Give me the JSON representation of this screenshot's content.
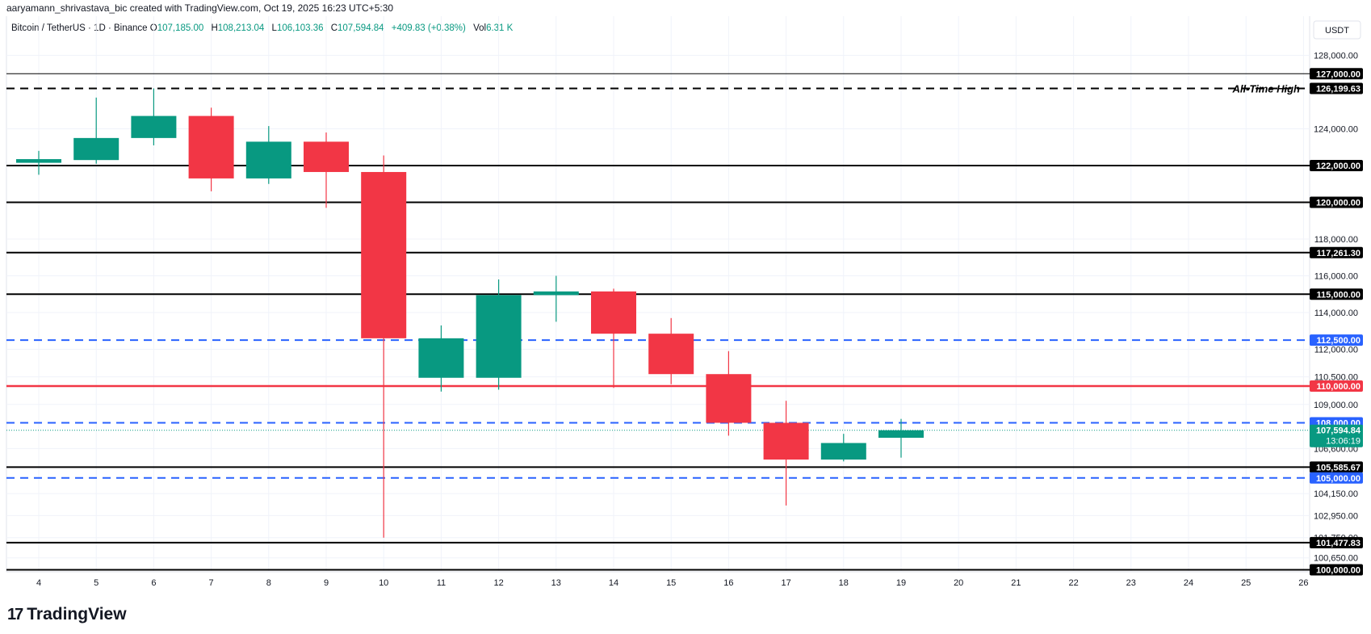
{
  "attribution": "aaryamann_shrivastava_bic created with TradingView.com, Oct 19, 2025 16:23 UTC+5:30",
  "legend": {
    "symbol": "Bitcoin / TetherUS · 1D · Binance",
    "o_label": "O",
    "o_value": "107,185.00",
    "h_label": "H",
    "h_value": "108,213.04",
    "l_label": "L",
    "l_value": "106,103.36",
    "c_label": "C",
    "c_value": "107,594.84",
    "change": "+409.83 (+0.38%)",
    "vol_label": "Vol",
    "vol_value": "6.31 K"
  },
  "currency": "USDT",
  "brand": "TradingView",
  "colors": {
    "up": "#089981",
    "down": "#f23645",
    "blue": "#2962ff",
    "red_level": "#f23645",
    "black": "#000000",
    "grid": "#f0f3fa",
    "axis_text": "#131722"
  },
  "chart_data": {
    "type": "candlestick",
    "x_ticks": [
      "4",
      "5",
      "6",
      "7",
      "8",
      "9",
      "10",
      "11",
      "12",
      "13",
      "14",
      "15",
      "16",
      "17",
      "18",
      "19",
      "20",
      "21",
      "22",
      "23",
      "24",
      "25",
      "26"
    ],
    "y_ticks": [
      "128,000.00",
      "124,000.00",
      "118,000.00",
      "116,000.00",
      "114,000.00",
      "112,000.00",
      "110,500.00",
      "109,000.00",
      "106,600.00",
      "104,150.00",
      "102,950.00",
      "101,750.00",
      "100,650.00"
    ],
    "candles": [
      {
        "day": 4,
        "open": 122150,
        "high": 122800,
        "low": 121500,
        "close": 122350
      },
      {
        "day": 5,
        "open": 122300,
        "high": 125700,
        "low": 122100,
        "close": 123500
      },
      {
        "day": 6,
        "open": 123500,
        "high": 126199.63,
        "low": 123100,
        "close": 124700
      },
      {
        "day": 7,
        "open": 124700,
        "high": 125150,
        "low": 120600,
        "close": 121300
      },
      {
        "day": 8,
        "open": 121300,
        "high": 124150,
        "low": 121000,
        "close": 123300
      },
      {
        "day": 9,
        "open": 123300,
        "high": 123800,
        "low": 119700,
        "close": 121650
      },
      {
        "day": 10,
        "open": 121650,
        "high": 122550,
        "low": 101750,
        "close": 112600
      },
      {
        "day": 11,
        "open": 110450,
        "high": 113300,
        "low": 109700,
        "close": 112600
      },
      {
        "day": 12,
        "open": 110450,
        "high": 115800,
        "low": 109800,
        "close": 114950
      },
      {
        "day": 13,
        "open": 114950,
        "high": 116000,
        "low": 113500,
        "close": 115150
      },
      {
        "day": 14,
        "open": 115150,
        "high": 115300,
        "low": 109900,
        "close": 112850
      },
      {
        "day": 15,
        "open": 112850,
        "high": 113700,
        "low": 110100,
        "close": 110650
      },
      {
        "day": 16,
        "open": 110650,
        "high": 111900,
        "low": 107300,
        "close": 108000
      },
      {
        "day": 17,
        "open": 108000,
        "high": 109200,
        "low": 103500,
        "close": 106000
      },
      {
        "day": 18,
        "open": 106000,
        "high": 107400,
        "low": 105900,
        "close": 106900
      },
      {
        "day": 19,
        "open": 107185,
        "high": 108213.04,
        "low": 106103.36,
        "close": 107594.84
      }
    ],
    "levels": [
      {
        "label": "127,000.00",
        "value": 127000,
        "color": "black",
        "style": "solid",
        "width": 1
      },
      {
        "label": "126,199.63",
        "value": 126199.63,
        "color": "black",
        "style": "dashed",
        "width": 2,
        "annotation": "All-Time High"
      },
      {
        "label": "122,000.00",
        "value": 122000,
        "color": "black",
        "style": "solid",
        "width": 2
      },
      {
        "label": "120,000.00",
        "value": 120000,
        "color": "black",
        "style": "solid",
        "width": 2
      },
      {
        "label": "117,261.30",
        "value": 117261.3,
        "color": "black",
        "style": "solid",
        "width": 2
      },
      {
        "label": "115,000.00",
        "value": 115000,
        "color": "black",
        "style": "solid",
        "width": 2
      },
      {
        "label": "112,500.00",
        "value": 112500,
        "color": "blue",
        "style": "dashed",
        "width": 2
      },
      {
        "label": "110,000.00",
        "value": 110000,
        "color": "red",
        "style": "solid",
        "width": 2.5
      },
      {
        "label": "108,000.00",
        "value": 108000,
        "color": "blue",
        "style": "dashed",
        "width": 2
      },
      {
        "label": "105,585.67",
        "value": 105585.67,
        "color": "black",
        "style": "solid",
        "width": 2
      },
      {
        "label": "105,000.00",
        "value": 105000,
        "color": "blue",
        "style": "dashed",
        "width": 2
      },
      {
        "label": "101,477.83",
        "value": 101477.83,
        "color": "black",
        "style": "solid",
        "width": 2
      },
      {
        "label": "100,000.00",
        "value": 100000,
        "color": "black",
        "style": "solid",
        "width": 2
      }
    ],
    "current_price": {
      "label": "107,594.84",
      "value": 107594.84,
      "countdown": "13:06:19"
    }
  }
}
